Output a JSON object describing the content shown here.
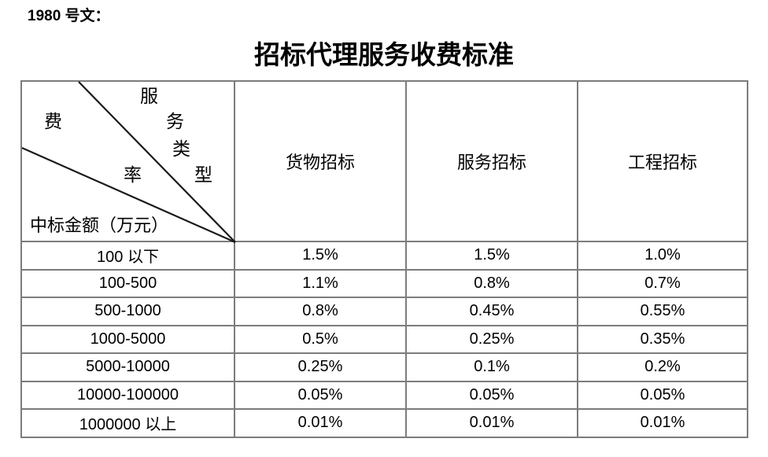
{
  "doc_label": "1980 号文：",
  "title": "招标代理服务收费标准",
  "table": {
    "corner": {
      "col_axis_chars": [
        "服",
        "务",
        "类",
        "型"
      ],
      "rate_axis_chars": [
        "费",
        "率"
      ],
      "row_axis_label": "中标金额（万元）"
    },
    "columns": [
      "货物招标",
      "服务招标",
      "工程招标"
    ],
    "rows": [
      {
        "label": "100 以下",
        "values": [
          "1.5%",
          "1.5%",
          "1.0%"
        ]
      },
      {
        "label": "100-500",
        "values": [
          "1.1%",
          "0.8%",
          "0.7%"
        ]
      },
      {
        "label": "500-1000",
        "values": [
          "0.8%",
          "0.45%",
          "0.55%"
        ]
      },
      {
        "label": "1000-5000",
        "values": [
          "0.5%",
          "0.25%",
          "0.35%"
        ]
      },
      {
        "label": "5000-10000",
        "values": [
          "0.25%",
          "0.1%",
          "0.2%"
        ]
      },
      {
        "label": "10000-100000",
        "values": [
          "0.05%",
          "0.05%",
          "0.05%"
        ]
      },
      {
        "label": "1000000 以上",
        "values": [
          "0.01%",
          "0.01%",
          "0.01%"
        ]
      }
    ]
  },
  "chart_data": {
    "type": "table",
    "title": "招标代理服务收费标准",
    "row_axis_label": "中标金额（万元）",
    "col_axis_label": "服务类型",
    "cell_metric": "费率",
    "categories": [
      "100 以下",
      "100-500",
      "500-1000",
      "1000-5000",
      "5000-10000",
      "10000-100000",
      "1000000 以上"
    ],
    "series": [
      {
        "name": "货物招标",
        "values": [
          "1.5%",
          "1.1%",
          "0.8%",
          "0.5%",
          "0.25%",
          "0.05%",
          "0.01%"
        ]
      },
      {
        "name": "服务招标",
        "values": [
          "1.5%",
          "0.8%",
          "0.45%",
          "0.25%",
          "0.1%",
          "0.05%",
          "0.01%"
        ]
      },
      {
        "name": "工程招标",
        "values": [
          "1.0%",
          "0.7%",
          "0.55%",
          "0.35%",
          "0.2%",
          "0.05%",
          "0.01%"
        ]
      }
    ]
  }
}
